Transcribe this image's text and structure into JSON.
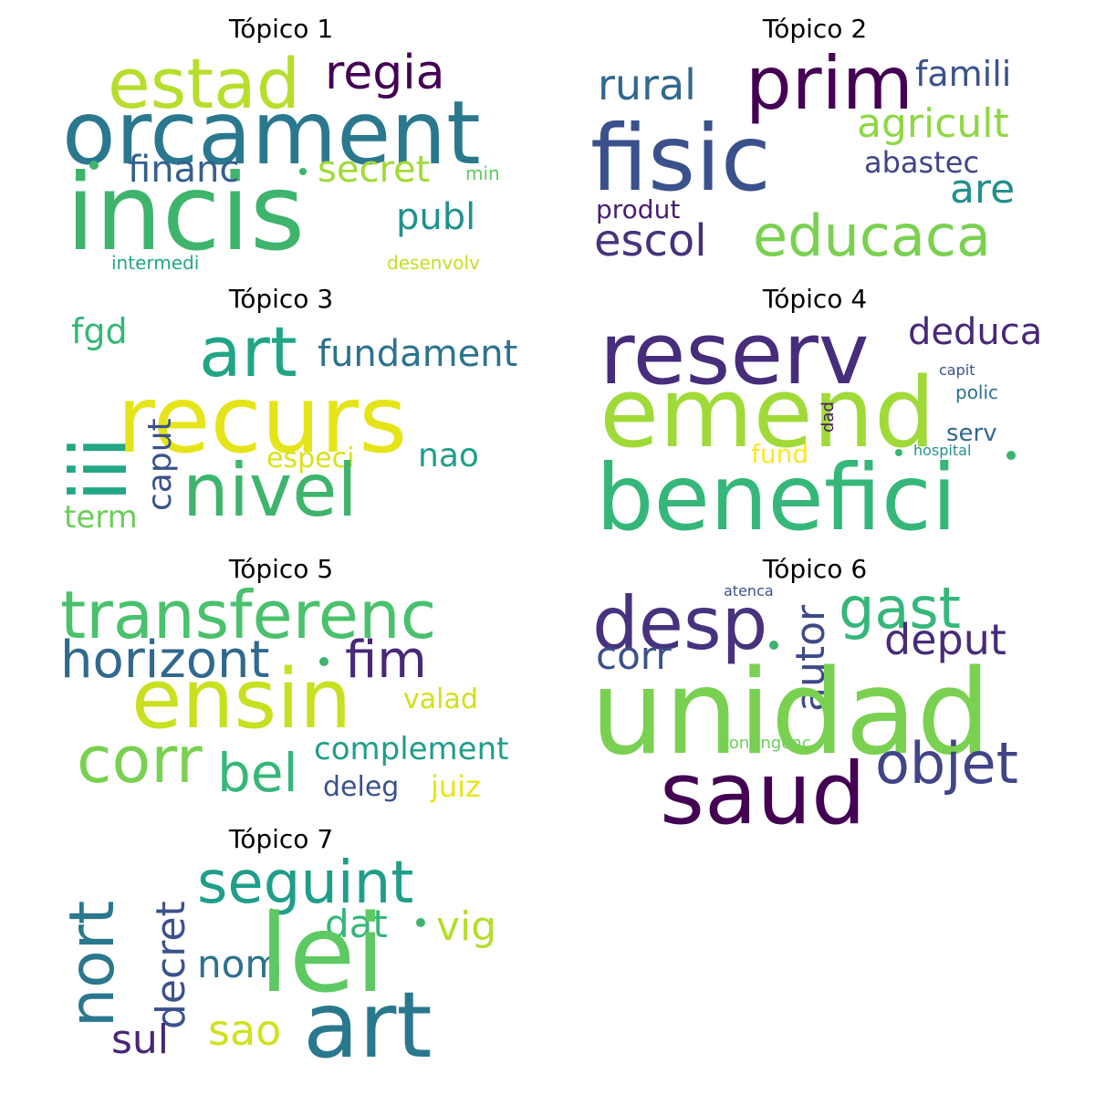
{
  "panels": [
    {
      "title": "Tópico 1",
      "words": [
        {
          "text": "orcament",
          "color": "#2a788e"
        },
        {
          "text": "incis",
          "color": "#3eb46d"
        },
        {
          "text": "estad",
          "color": "#b6de2b"
        },
        {
          "text": "regia",
          "color": "#440154"
        },
        {
          "text": "financ",
          "color": "#355f8d"
        },
        {
          "text": "secret",
          "color": "#a2da37"
        },
        {
          "text": "publ",
          "color": "#21918c"
        },
        {
          "text": "min",
          "color": "#5ec962"
        },
        {
          "text": "intermedi",
          "color": "#22a884"
        },
        {
          "text": "desenvolv",
          "color": "#c2df23"
        }
      ]
    },
    {
      "title": "Tópico 2",
      "words": [
        {
          "text": "prim",
          "color": "#440154"
        },
        {
          "text": "rural",
          "color": "#31688e"
        },
        {
          "text": "famili",
          "color": "#3b528b"
        },
        {
          "text": "fisic",
          "color": "#3b518b"
        },
        {
          "text": "agricult",
          "color": "#8fd744"
        },
        {
          "text": "abastec",
          "color": "#414487"
        },
        {
          "text": "are",
          "color": "#21918c"
        },
        {
          "text": "produt",
          "color": "#481f70"
        },
        {
          "text": "escol",
          "color": "#46327e"
        },
        {
          "text": "educaca",
          "color": "#7ad151"
        }
      ]
    },
    {
      "title": "Tópico 3",
      "words": [
        {
          "text": "fgd",
          "color": "#35b779"
        },
        {
          "text": "art",
          "color": "#21a585"
        },
        {
          "text": "fundament",
          "color": "#2c728e"
        },
        {
          "text": "iii",
          "color": "#22a884"
        },
        {
          "text": "recurs",
          "color": "#e5e419"
        },
        {
          "text": "caput",
          "color": "#3b528b"
        },
        {
          "text": "especi",
          "color": "#d8e219"
        },
        {
          "text": "nao",
          "color": "#1f9e89"
        },
        {
          "text": "nivel",
          "color": "#3eb46d"
        },
        {
          "text": "term",
          "color": "#6ccd5a"
        }
      ]
    },
    {
      "title": "Tópico 4",
      "words": [
        {
          "text": "reserv",
          "color": "#472d7b"
        },
        {
          "text": "deduca",
          "color": "#482878"
        },
        {
          "text": "capit",
          "color": "#3b528b"
        },
        {
          "text": "polic",
          "color": "#2c728e"
        },
        {
          "text": "emend",
          "color": "#a0da39"
        },
        {
          "text": "dad",
          "color": "#481668"
        },
        {
          "text": "serv",
          "color": "#31688e"
        },
        {
          "text": "fund",
          "color": "#fde725"
        },
        {
          "text": "hospital",
          "color": "#21918c"
        },
        {
          "text": "benefici",
          "color": "#35b779"
        }
      ]
    },
    {
      "title": "Tópico 5",
      "words": [
        {
          "text": "transferenc",
          "color": "#4ac16d"
        },
        {
          "text": "horizont",
          "color": "#31688e"
        },
        {
          "text": "fim",
          "color": "#482878"
        },
        {
          "text": "ensin",
          "color": "#c8e020"
        },
        {
          "text": "valad",
          "color": "#d0e11c"
        },
        {
          "text": "corr",
          "color": "#7ad151"
        },
        {
          "text": "bel",
          "color": "#35b779"
        },
        {
          "text": "complement",
          "color": "#1f9e89"
        },
        {
          "text": "deleg",
          "color": "#3b528b"
        },
        {
          "text": "juiz",
          "color": "#e7e419"
        }
      ]
    },
    {
      "title": "Tópico 6",
      "words": [
        {
          "text": "atenca",
          "color": "#3b528b"
        },
        {
          "text": "desp",
          "color": "#46327e"
        },
        {
          "text": "autor",
          "color": "#3e4a89"
        },
        {
          "text": "gast",
          "color": "#35b779"
        },
        {
          "text": "deput",
          "color": "#472c7a"
        },
        {
          "text": "corr",
          "color": "#3b528b"
        },
        {
          "text": "unidad",
          "color": "#7ad151"
        },
        {
          "text": "contingenc",
          "color": "#6ccd5a"
        },
        {
          "text": "saud",
          "color": "#440154"
        },
        {
          "text": "objet",
          "color": "#414487"
        }
      ]
    },
    {
      "title": "Tópico 7",
      "words": [
        {
          "text": "nort",
          "color": "#2a788e"
        },
        {
          "text": "decret",
          "color": "#3b528b"
        },
        {
          "text": "seguint",
          "color": "#1f9e89"
        },
        {
          "text": "dat",
          "color": "#35b779"
        },
        {
          "text": "vig",
          "color": "#b5de2b"
        },
        {
          "text": "nom",
          "color": "#2c728e"
        },
        {
          "text": "lei",
          "color": "#5ec962"
        },
        {
          "text": "sul",
          "color": "#482475"
        },
        {
          "text": "sao",
          "color": "#d0e11c"
        },
        {
          "text": "art",
          "color": "#2a788e"
        }
      ]
    }
  ],
  "dot_color": "#3eb46d"
}
